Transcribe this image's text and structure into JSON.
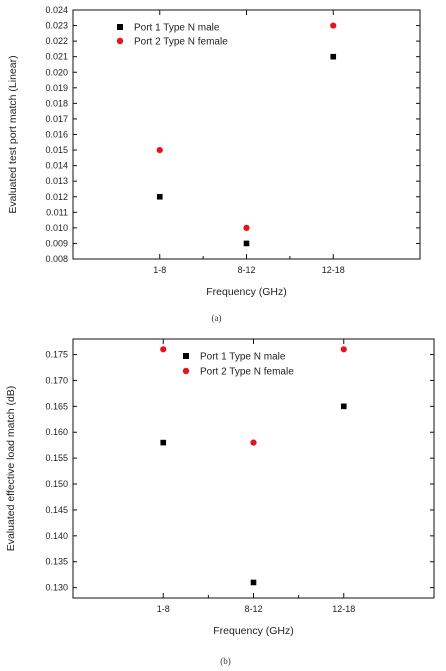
{
  "chart_data": [
    {
      "type": "scatter",
      "caption": "(a)",
      "categories": [
        "1-8",
        "8-12",
        "12-18"
      ],
      "xlabel": "Frequency (GHz)",
      "ylabel": "Evaluated test port match (Linear)",
      "ylim": [
        0.008,
        0.024
      ],
      "yticks": [
        "0.008",
        "0.009",
        "0.010",
        "0.011",
        "0.012",
        "0.013",
        "0.014",
        "0.015",
        "0.016",
        "0.017",
        "0.018",
        "0.019",
        "0.020",
        "0.021",
        "0.022",
        "0.023",
        "0.024"
      ],
      "legend_position": "top-left",
      "series": [
        {
          "name": "Port 1 Type N male",
          "marker": "square",
          "color": "#000000",
          "values": [
            0.012,
            0.009,
            0.021
          ]
        },
        {
          "name": "Port 2 Type N female",
          "marker": "circle",
          "color": "#e3141b",
          "values": [
            0.015,
            0.01,
            0.023
          ]
        }
      ]
    },
    {
      "type": "scatter",
      "caption": "(b)",
      "categories": [
        "1-8",
        "8-12",
        "12-18"
      ],
      "xlabel": "Frequency (GHz)",
      "ylabel": "Evaluated effective load match (dB)",
      "ylim": [
        0.128,
        0.178
      ],
      "yticks": [
        "0.130",
        "0.135",
        "0.140",
        "0.145",
        "0.150",
        "0.155",
        "0.160",
        "0.165",
        "0.170",
        "0.175"
      ],
      "legend_position": "top-center",
      "series": [
        {
          "name": "Port 1 Type N male",
          "marker": "square",
          "color": "#000000",
          "values": [
            0.158,
            0.131,
            0.165
          ]
        },
        {
          "name": "Port 2 Type N female",
          "marker": "circle",
          "color": "#e3141b",
          "values": [
            0.176,
            0.158,
            0.176
          ]
        }
      ]
    }
  ]
}
